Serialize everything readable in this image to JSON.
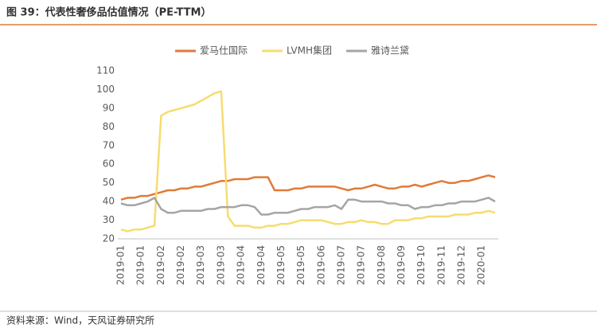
{
  "chart_data": {
    "type": "line",
    "title": "图 39：代表性奢侈品估值情况（PE-TTM）",
    "source": "资料来源：Wind，天风证券研究所",
    "categories": [
      "2019-01",
      null,
      null,
      "2019-01",
      null,
      null,
      "2019-02",
      null,
      null,
      "2019-02",
      null,
      null,
      "2019-03",
      null,
      null,
      "2019-03",
      null,
      null,
      "2019-04",
      null,
      null,
      "2019-04",
      null,
      null,
      "2019-05",
      null,
      null,
      "2019-05",
      null,
      null,
      "2019-06",
      null,
      null,
      "2019-07",
      null,
      null,
      "2019-07",
      null,
      null,
      "2019-08",
      null,
      null,
      "2019-09",
      null,
      null,
      "2019-10",
      null,
      null,
      "2019-11",
      null,
      null,
      "2019-12",
      null,
      null,
      "2020-01",
      null,
      null
    ],
    "series": [
      {
        "name": "爱马仕国际",
        "color": "#e07b39",
        "values": [
          41,
          42,
          42,
          43,
          43,
          44,
          45,
          46,
          46,
          47,
          47,
          48,
          48,
          49,
          50,
          51,
          51,
          52,
          52,
          52,
          53,
          53,
          53,
          46,
          46,
          46,
          47,
          47,
          48,
          48,
          48,
          48,
          48,
          47,
          46,
          47,
          47,
          48,
          49,
          48,
          47,
          47,
          48,
          48,
          49,
          48,
          49,
          50,
          51,
          50,
          50,
          51,
          51,
          52,
          53,
          54,
          53
        ]
      },
      {
        "name": "LVMH集团",
        "color": "#f7dc6f",
        "values": [
          25,
          24,
          25,
          25,
          26,
          27,
          86,
          88,
          89,
          90,
          91,
          92,
          94,
          96,
          98,
          99,
          32,
          27,
          27,
          27,
          26,
          26,
          27,
          27,
          28,
          28,
          29,
          30,
          30,
          30,
          30,
          29,
          28,
          28,
          29,
          29,
          30,
          29,
          29,
          28,
          28,
          30,
          30,
          30,
          31,
          31,
          32,
          32,
          32,
          32,
          33,
          33,
          33,
          34,
          34,
          35,
          34
        ]
      },
      {
        "name": "雅诗兰黛",
        "color": "#a5a5a5",
        "values": [
          39,
          38,
          38,
          39,
          40,
          42,
          36,
          34,
          34,
          35,
          35,
          35,
          35,
          36,
          36,
          37,
          37,
          37,
          38,
          38,
          37,
          33,
          33,
          34,
          34,
          34,
          35,
          36,
          36,
          37,
          37,
          37,
          38,
          36,
          41,
          41,
          40,
          40,
          40,
          40,
          39,
          39,
          38,
          38,
          36,
          37,
          37,
          38,
          38,
          39,
          39,
          40,
          40,
          40,
          41,
          42,
          40
        ]
      }
    ],
    "ylim": [
      20,
      110
    ],
    "yticks": [
      20,
      30,
      40,
      50,
      60,
      70,
      80,
      90,
      100,
      110
    ],
    "legend": "top"
  }
}
